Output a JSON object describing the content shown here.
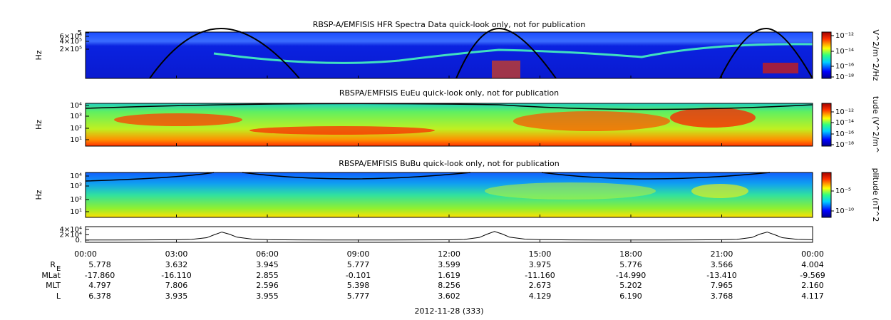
{
  "panels": [
    {
      "title": "RBSP-A/EMFISIS  HFR Spectra Data quick-look only, not for publication",
      "y_label": "Hz",
      "y_ticks": [
        "5",
        "6×10⁵",
        "4×10⁵",
        "2×10⁵"
      ],
      "colorbar_label": "V^2/m^2/Hz",
      "colorbar_ticks": [
        "10⁻¹²",
        "10⁻¹⁴",
        "10⁻¹⁶",
        "10⁻¹⁸"
      ]
    },
    {
      "title": "RBSPA/EMFISIS  EuEu quick-look only, not for publication",
      "y_label": "Hz",
      "y_ticks": [
        "10⁴",
        "10³",
        "10²",
        "10¹"
      ],
      "colorbar_label": "tude (V^2/m^",
      "colorbar_ticks": [
        "10⁻¹²",
        "10⁻¹⁴",
        "10⁻¹⁶",
        "10⁻¹⁸"
      ]
    },
    {
      "title": "RBSPA/EMFISIS  BuBu quick-look only, not for publication",
      "y_label": "Hz",
      "y_ticks": [
        "10⁴",
        "10³",
        "10²",
        "10¹"
      ],
      "colorbar_label": "plitude (nT^2",
      "colorbar_ticks": [
        "10⁻⁵",
        "10⁻¹⁰"
      ]
    }
  ],
  "chart_data": {
    "type": "line",
    "color": "#000000",
    "x": [
      0,
      1,
      2,
      3,
      3.5,
      4,
      4.25,
      4.5,
      4.75,
      5,
      5.5,
      6,
      7,
      8,
      9,
      10,
      11,
      12,
      12.5,
      13,
      13.25,
      13.5,
      13.75,
      14,
      14.5,
      15,
      16,
      17,
      18,
      19,
      20,
      21,
      21.5,
      22,
      22.25,
      22.5,
      22.75,
      23,
      23.5,
      24
    ],
    "values": [
      600,
      700,
      900,
      1500,
      3000,
      9000,
      20000,
      30000,
      22000,
      11000,
      4000,
      1800,
      1000,
      700,
      600,
      650,
      800,
      1300,
      2500,
      10000,
      22000,
      32000,
      23000,
      11000,
      4000,
      2000,
      1000,
      700,
      650,
      700,
      900,
      1500,
      3000,
      10000,
      22000,
      30000,
      20000,
      9000,
      3000,
      1500
    ],
    "xlim": [
      0,
      24
    ],
    "ylim": [
      -8000,
      50000
    ],
    "yticks": [
      {
        "value": 40000,
        "label": "4×10⁴"
      },
      {
        "value": 20000,
        "label": "2×10⁴"
      },
      {
        "value": 0,
        "label": "0."
      }
    ],
    "xticks": [
      {
        "value": 0,
        "label": "00:00"
      },
      {
        "value": 3,
        "label": "03:00"
      },
      {
        "value": 6,
        "label": "06:00"
      },
      {
        "value": 9,
        "label": "09:00"
      },
      {
        "value": 12,
        "label": "12:00"
      },
      {
        "value": 15,
        "label": "15:00"
      },
      {
        "value": 18,
        "label": "18:00"
      },
      {
        "value": 21,
        "label": "21:00"
      },
      {
        "value": 24,
        "label": "00:00"
      }
    ]
  },
  "ephemeris": {
    "row_labels": [
      "R",
      "MLat",
      "MLT",
      "L"
    ],
    "row_label_subscript": "E",
    "rows": [
      [
        "5.778",
        "3.632",
        "3.945",
        "5.777",
        "3.599",
        "3.975",
        "5.776",
        "3.566",
        "4.004"
      ],
      [
        "-17.860",
        "-16.110",
        "2.855",
        "-0.101",
        "1.619",
        "-11.160",
        "-14.990",
        "-13.410",
        "-9.569"
      ],
      [
        "4.797",
        "7.806",
        "2.596",
        "5.398",
        "8.256",
        "2.673",
        "5.202",
        "7.965",
        "2.160"
      ],
      [
        "6.378",
        "3.935",
        "3.955",
        "5.777",
        "3.602",
        "4.129",
        "6.190",
        "3.768",
        "4.117"
      ]
    ]
  },
  "date_label": "2012-11-28 (333)"
}
